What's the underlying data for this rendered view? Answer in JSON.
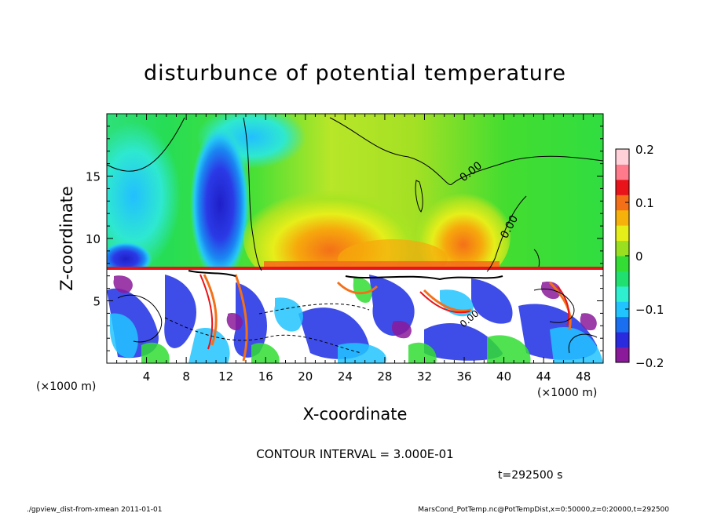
{
  "chart_data": {
    "type": "heatmap",
    "title": "disturbunce of potential temperature",
    "xlabel": "X-coordinate",
    "ylabel": "Z-coordinate",
    "x_unit_left": "(×1000 m)",
    "x_unit_right": "(×1000 m)",
    "xlim": [
      0,
      50
    ],
    "ylim": [
      0,
      20
    ],
    "xticks": [
      4,
      8,
      12,
      16,
      20,
      24,
      28,
      32,
      36,
      40,
      44,
      48
    ],
    "yticks": [
      5,
      10,
      15
    ],
    "colorbar": {
      "range": [
        -0.2,
        0.2
      ],
      "ticks": [
        "0.2",
        "0.1",
        "0",
        "−0.1",
        "−0.2"
      ],
      "colors": [
        "#8a1a9a",
        "#2a2adf",
        "#1a6ff0",
        "#22c4ff",
        "#2ef0d0",
        "#20e070",
        "#33dd33",
        "#9ae020",
        "#e6ee1a",
        "#f6b20a",
        "#f47018",
        "#e8141a",
        "#ff7a8a",
        "#ffd0d8"
      ]
    },
    "contour_labels": [
      "0.00",
      "0.00",
      "0.00"
    ],
    "contour_interval_text": "CONTOUR INTERVAL = 3.000E-01",
    "time_text": "t=292500  s"
  },
  "footer": {
    "left": "./gpview_dist-from-xmean   2011-01-01",
    "right": "MarsCond_PotTemp.nc@PotTempDist,x=0:50000,z=0:20000,t=292500"
  }
}
